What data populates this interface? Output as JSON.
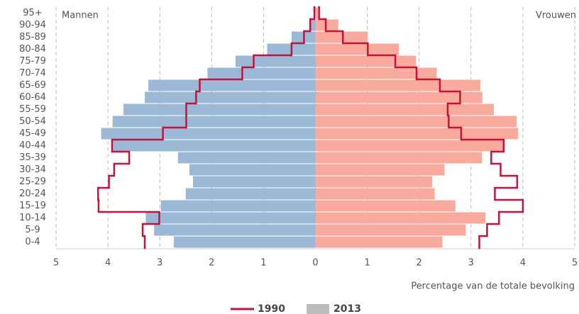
{
  "chart_data": {
    "type": "population-pyramid",
    "categories": [
      "95+",
      "90-94",
      "85-89",
      "80-84",
      "75-79",
      "70-74",
      "65-69",
      "60-64",
      "55-59",
      "50-54",
      "45-49",
      "40-44",
      "35-39",
      "30-34",
      "25-29",
      "20-24",
      "15-19",
      "10-14",
      "5-9",
      "0-4"
    ],
    "sides": [
      {
        "label": "Mannen",
        "direction": "left",
        "bar_color": "#9bb8d7"
      },
      {
        "label": "Vrouwen",
        "direction": "right",
        "bar_color": "#f8ab9c"
      }
    ],
    "series": [
      {
        "name": "1990",
        "mark": "line",
        "color": "#c0143c",
        "left": [
          0.02,
          0.1,
          0.22,
          0.46,
          1.19,
          1.41,
          2.23,
          2.3,
          2.49,
          2.49,
          2.94,
          3.92,
          3.59,
          3.88,
          3.98,
          4.19,
          4.18,
          3.01,
          3.33,
          3.29
        ],
        "right": [
          0.07,
          0.2,
          0.53,
          1.01,
          1.54,
          1.95,
          2.4,
          2.79,
          2.55,
          2.57,
          2.81,
          3.63,
          3.39,
          3.57,
          3.89,
          3.46,
          4.0,
          3.54,
          3.31,
          3.16
        ]
      },
      {
        "name": "2013",
        "mark": "bar",
        "color": "#bbbbbb",
        "left": [
          0.02,
          0.1,
          0.46,
          0.93,
          1.54,
          2.08,
          3.22,
          3.29,
          3.7,
          3.91,
          4.13,
          3.92,
          2.65,
          2.43,
          2.36,
          2.5,
          2.98,
          3.27,
          3.11,
          2.73
        ],
        "right": [
          0.05,
          0.44,
          1.01,
          1.61,
          1.94,
          2.34,
          3.18,
          3.22,
          3.44,
          3.88,
          3.91,
          3.65,
          3.21,
          2.49,
          2.25,
          2.3,
          2.7,
          3.28,
          2.9,
          2.45
        ]
      }
    ],
    "xlim": [
      -5,
      5
    ],
    "xticks": [
      {
        "value": -5,
        "label": "5"
      },
      {
        "value": -4,
        "label": "4"
      },
      {
        "value": -3,
        "label": "3"
      },
      {
        "value": -2,
        "label": "2"
      },
      {
        "value": -1,
        "label": "1"
      },
      0,
      1,
      2,
      3,
      4,
      5
    ],
    "xlabel": "Percentage van de totale bevolking",
    "grid": true
  }
}
